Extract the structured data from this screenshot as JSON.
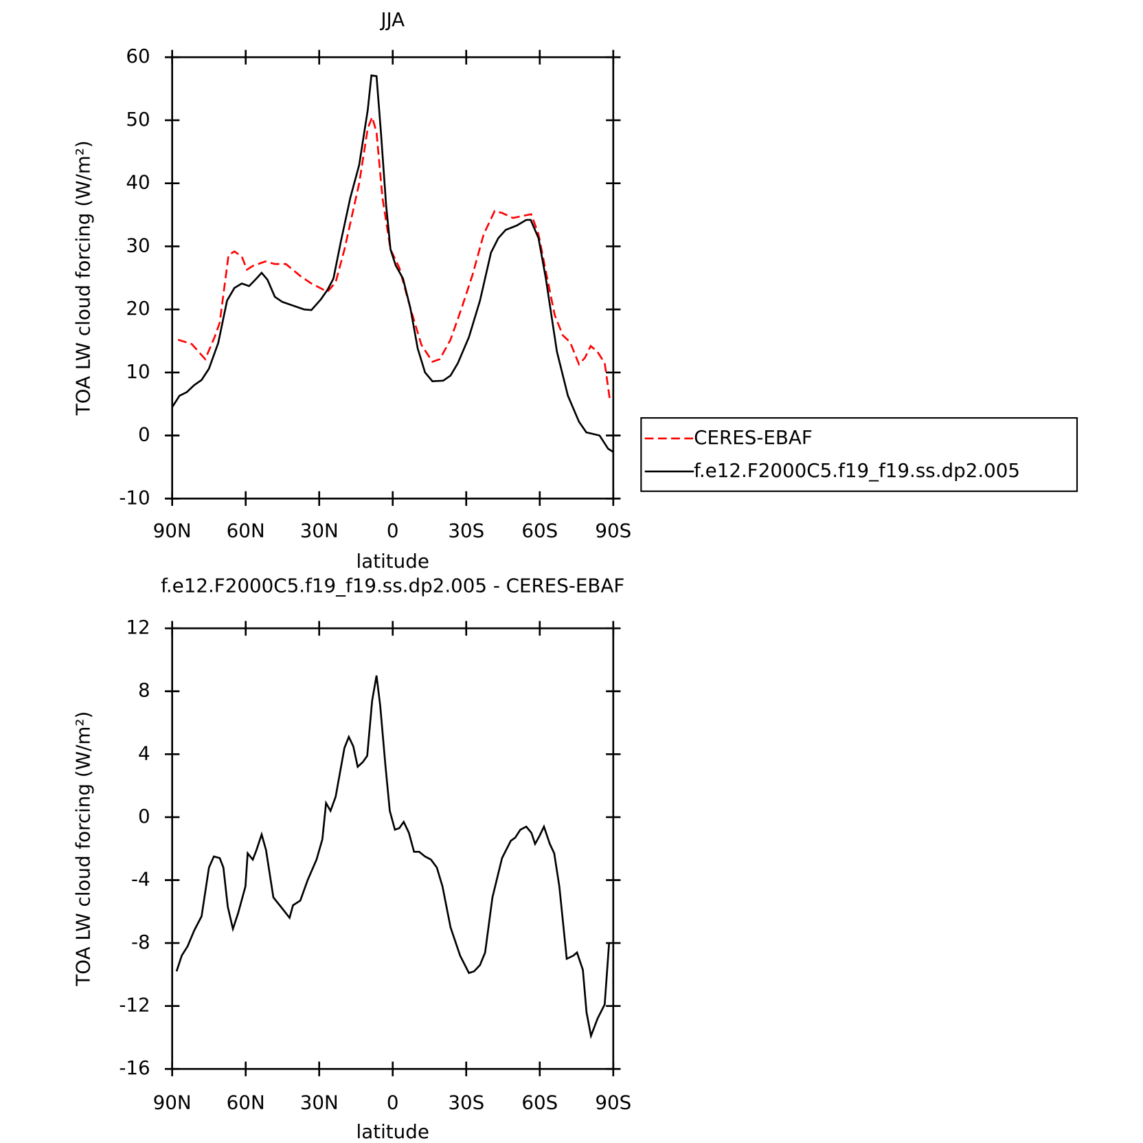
{
  "chart_data": [
    {
      "type": "line",
      "title": "JJA",
      "xlabel": "latitude",
      "ylabel": "TOA LW cloud forcing (W/m²)",
      "xlim": [
        90,
        -90
      ],
      "xticks": [
        {
          "value": 90,
          "label": "90N"
        },
        {
          "value": 60,
          "label": "60N"
        },
        {
          "value": 30,
          "label": "30N"
        },
        0,
        {
          "value": -30,
          "label": "30S"
        },
        {
          "value": -60,
          "label": "60S"
        },
        {
          "value": -90,
          "label": "90S"
        }
      ],
      "ylim": [
        -10,
        60
      ],
      "yticks": [
        -10,
        0,
        10,
        20,
        30,
        40,
        50,
        60
      ],
      "legend": "right",
      "series": [
        {
          "name": "CERES-EBAF",
          "color": "#ff0000",
          "linestyle": "dashed",
          "x": [
            87.6,
            82,
            76.5,
            72.7,
            70.6,
            67,
            64.6,
            61.6,
            59.5,
            57.1,
            52,
            48.1,
            43.6,
            37.7,
            33.2,
            26.6,
            23.3,
            19.7,
            13.7,
            10.2,
            8.4,
            6.6,
            4.2,
            0.9,
            -2.7,
            -7.2,
            -11.7,
            -16.2,
            -19.2,
            -23.6,
            -28.1,
            -32.6,
            -37.1,
            -41.6,
            -44.6,
            -49.1,
            -52.7,
            -56.5,
            -59.5,
            -62.5,
            -66.1,
            -69.4,
            -72.4,
            -76,
            -78.4,
            -80.8,
            -83.5,
            -86.5,
            -88.6
          ],
          "values": [
            15.2,
            14.5,
            12.1,
            15.6,
            17.9,
            28.6,
            29.2,
            28.4,
            26.3,
            26.9,
            27.6,
            27.2,
            27.2,
            25.3,
            24.1,
            22.8,
            24.3,
            29.5,
            40,
            48.7,
            50.5,
            48.1,
            37.7,
            29.5,
            26.6,
            20.2,
            14.4,
            11.7,
            12.1,
            15.2,
            20.2,
            25.5,
            31.9,
            35.6,
            35.3,
            34.5,
            34.8,
            35.1,
            31.9,
            26,
            19.1,
            15.9,
            14.8,
            11.3,
            12.3,
            14.2,
            13.3,
            11.5,
            5.7
          ]
        },
        {
          "name": "f.e12.F2000C5.f19_f19.ss.dp2.005",
          "color": "#000000",
          "linestyle": "solid",
          "x": [
            90,
            87,
            84,
            81,
            78,
            75,
            71.2,
            67.6,
            64.6,
            61.6,
            58.6,
            55.6,
            53.5,
            51.1,
            48.1,
            45.1,
            40.7,
            36.2,
            33.2,
            29.3,
            26.6,
            24.2,
            21.2,
            17.3,
            13.7,
            10.2,
            8.7,
            6.6,
            4.8,
            2.7,
            0.9,
            -1.2,
            -4.2,
            -7.2,
            -10.2,
            -13.2,
            -16.2,
            -20.6,
            -23.6,
            -26.6,
            -31.1,
            -35.6,
            -40.1,
            -43.1,
            -46.1,
            -50.6,
            -54.5,
            -56.3,
            -59.5,
            -62.5,
            -67,
            -71.5,
            -76,
            -79,
            -84.4,
            -87.9,
            -90
          ],
          "values": [
            4.5,
            6.3,
            6.9,
            8,
            8.8,
            10.6,
            14.7,
            21.4,
            23.4,
            24.1,
            23.7,
            24.9,
            25.8,
            24.7,
            22,
            21.2,
            20.6,
            20,
            19.9,
            21.6,
            23.1,
            24.9,
            30.7,
            37.7,
            42.9,
            51.6,
            57.1,
            57,
            48.1,
            36.5,
            29.5,
            27,
            24.9,
            20.2,
            13.8,
            10,
            8.6,
            8.7,
            9.5,
            11.5,
            15.6,
            21.4,
            29,
            31.3,
            32.6,
            33.3,
            34.2,
            34.2,
            31.3,
            24.9,
            13.3,
            6.3,
            2.2,
            0.5,
            0,
            -2.1,
            -2.6
          ]
        }
      ]
    },
    {
      "type": "line",
      "title": "f.e12.F2000C5.f19_f19.ss.dp2.005 - CERES-EBAF",
      "xlabel": "latitude",
      "ylabel": "TOA LW cloud forcing (W/m²)",
      "xlim": [
        90,
        -90
      ],
      "xticks": [
        {
          "value": 90,
          "label": "90N"
        },
        {
          "value": 60,
          "label": "60N"
        },
        {
          "value": 30,
          "label": "30N"
        },
        0,
        {
          "value": -30,
          "label": "30S"
        },
        {
          "value": -60,
          "label": "60S"
        },
        {
          "value": -90,
          "label": "90S"
        }
      ],
      "ylim": [
        -16,
        12
      ],
      "yticks": [
        -16,
        -12,
        -8,
        -4,
        0,
        4,
        8,
        12
      ],
      "series": [
        {
          "color": "#000000",
          "linestyle": "solid",
          "x": [
            88.2,
            86.1,
            83.7,
            81,
            78,
            75,
            73,
            70.6,
            69.1,
            67.3,
            65.2,
            63.1,
            60.1,
            59.2,
            57.1,
            55.6,
            53.5,
            51.7,
            48.7,
            45.1,
            42.1,
            40.7,
            37.7,
            34.7,
            31.1,
            28.7,
            27.2,
            25.4,
            23.3,
            19.7,
            17.9,
            16.1,
            14.3,
            12.2,
            10.4,
            8.4,
            6.6,
            5.1,
            3,
            1.2,
            -0.9,
            -2.7,
            -4.5,
            -6.6,
            -8.7,
            -10.8,
            -13.2,
            -15.6,
            -18,
            -20.3,
            -23.6,
            -27.5,
            -31.1,
            -33.2,
            -35.6,
            -37.7,
            -40.7,
            -44.6,
            -48.2,
            -50,
            -52.1,
            -54.5,
            -56.6,
            -58.1,
            -59.9,
            -61.7,
            -64.1,
            -65.9,
            -68,
            -71,
            -73.7,
            -75.2,
            -77.6,
            -79.1,
            -80.9,
            -83.6,
            -86.5,
            -88.3
          ],
          "values": [
            -9.8,
            -8.8,
            -8.2,
            -7.2,
            -6.3,
            -3.2,
            -2.5,
            -2.6,
            -3.2,
            -5.7,
            -7.1,
            -6.1,
            -4.4,
            -2.3,
            -2.7,
            -2.1,
            -1.1,
            -2.1,
            -5.1,
            -5.8,
            -6.4,
            -5.6,
            -5.3,
            -4,
            -2.7,
            -1.4,
            0.9,
            0.4,
            1.3,
            4.4,
            5.1,
            4.5,
            3.2,
            3.5,
            3.9,
            7.4,
            9,
            7.1,
            3.3,
            0.4,
            -0.8,
            -0.7,
            -0.3,
            -1,
            -2.2,
            -2.2,
            -2.5,
            -2.7,
            -3.2,
            -4.4,
            -7,
            -8.8,
            -9.9,
            -9.8,
            -9.4,
            -8.6,
            -5.1,
            -2.6,
            -1.5,
            -1.3,
            -0.8,
            -0.6,
            -1,
            -1.7,
            -1.2,
            -0.6,
            -1.7,
            -2.3,
            -4.4,
            -9,
            -8.8,
            -8.6,
            -9.7,
            -12.4,
            -13.9,
            -12.8,
            -11.9,
            -8
          ]
        }
      ]
    }
  ]
}
